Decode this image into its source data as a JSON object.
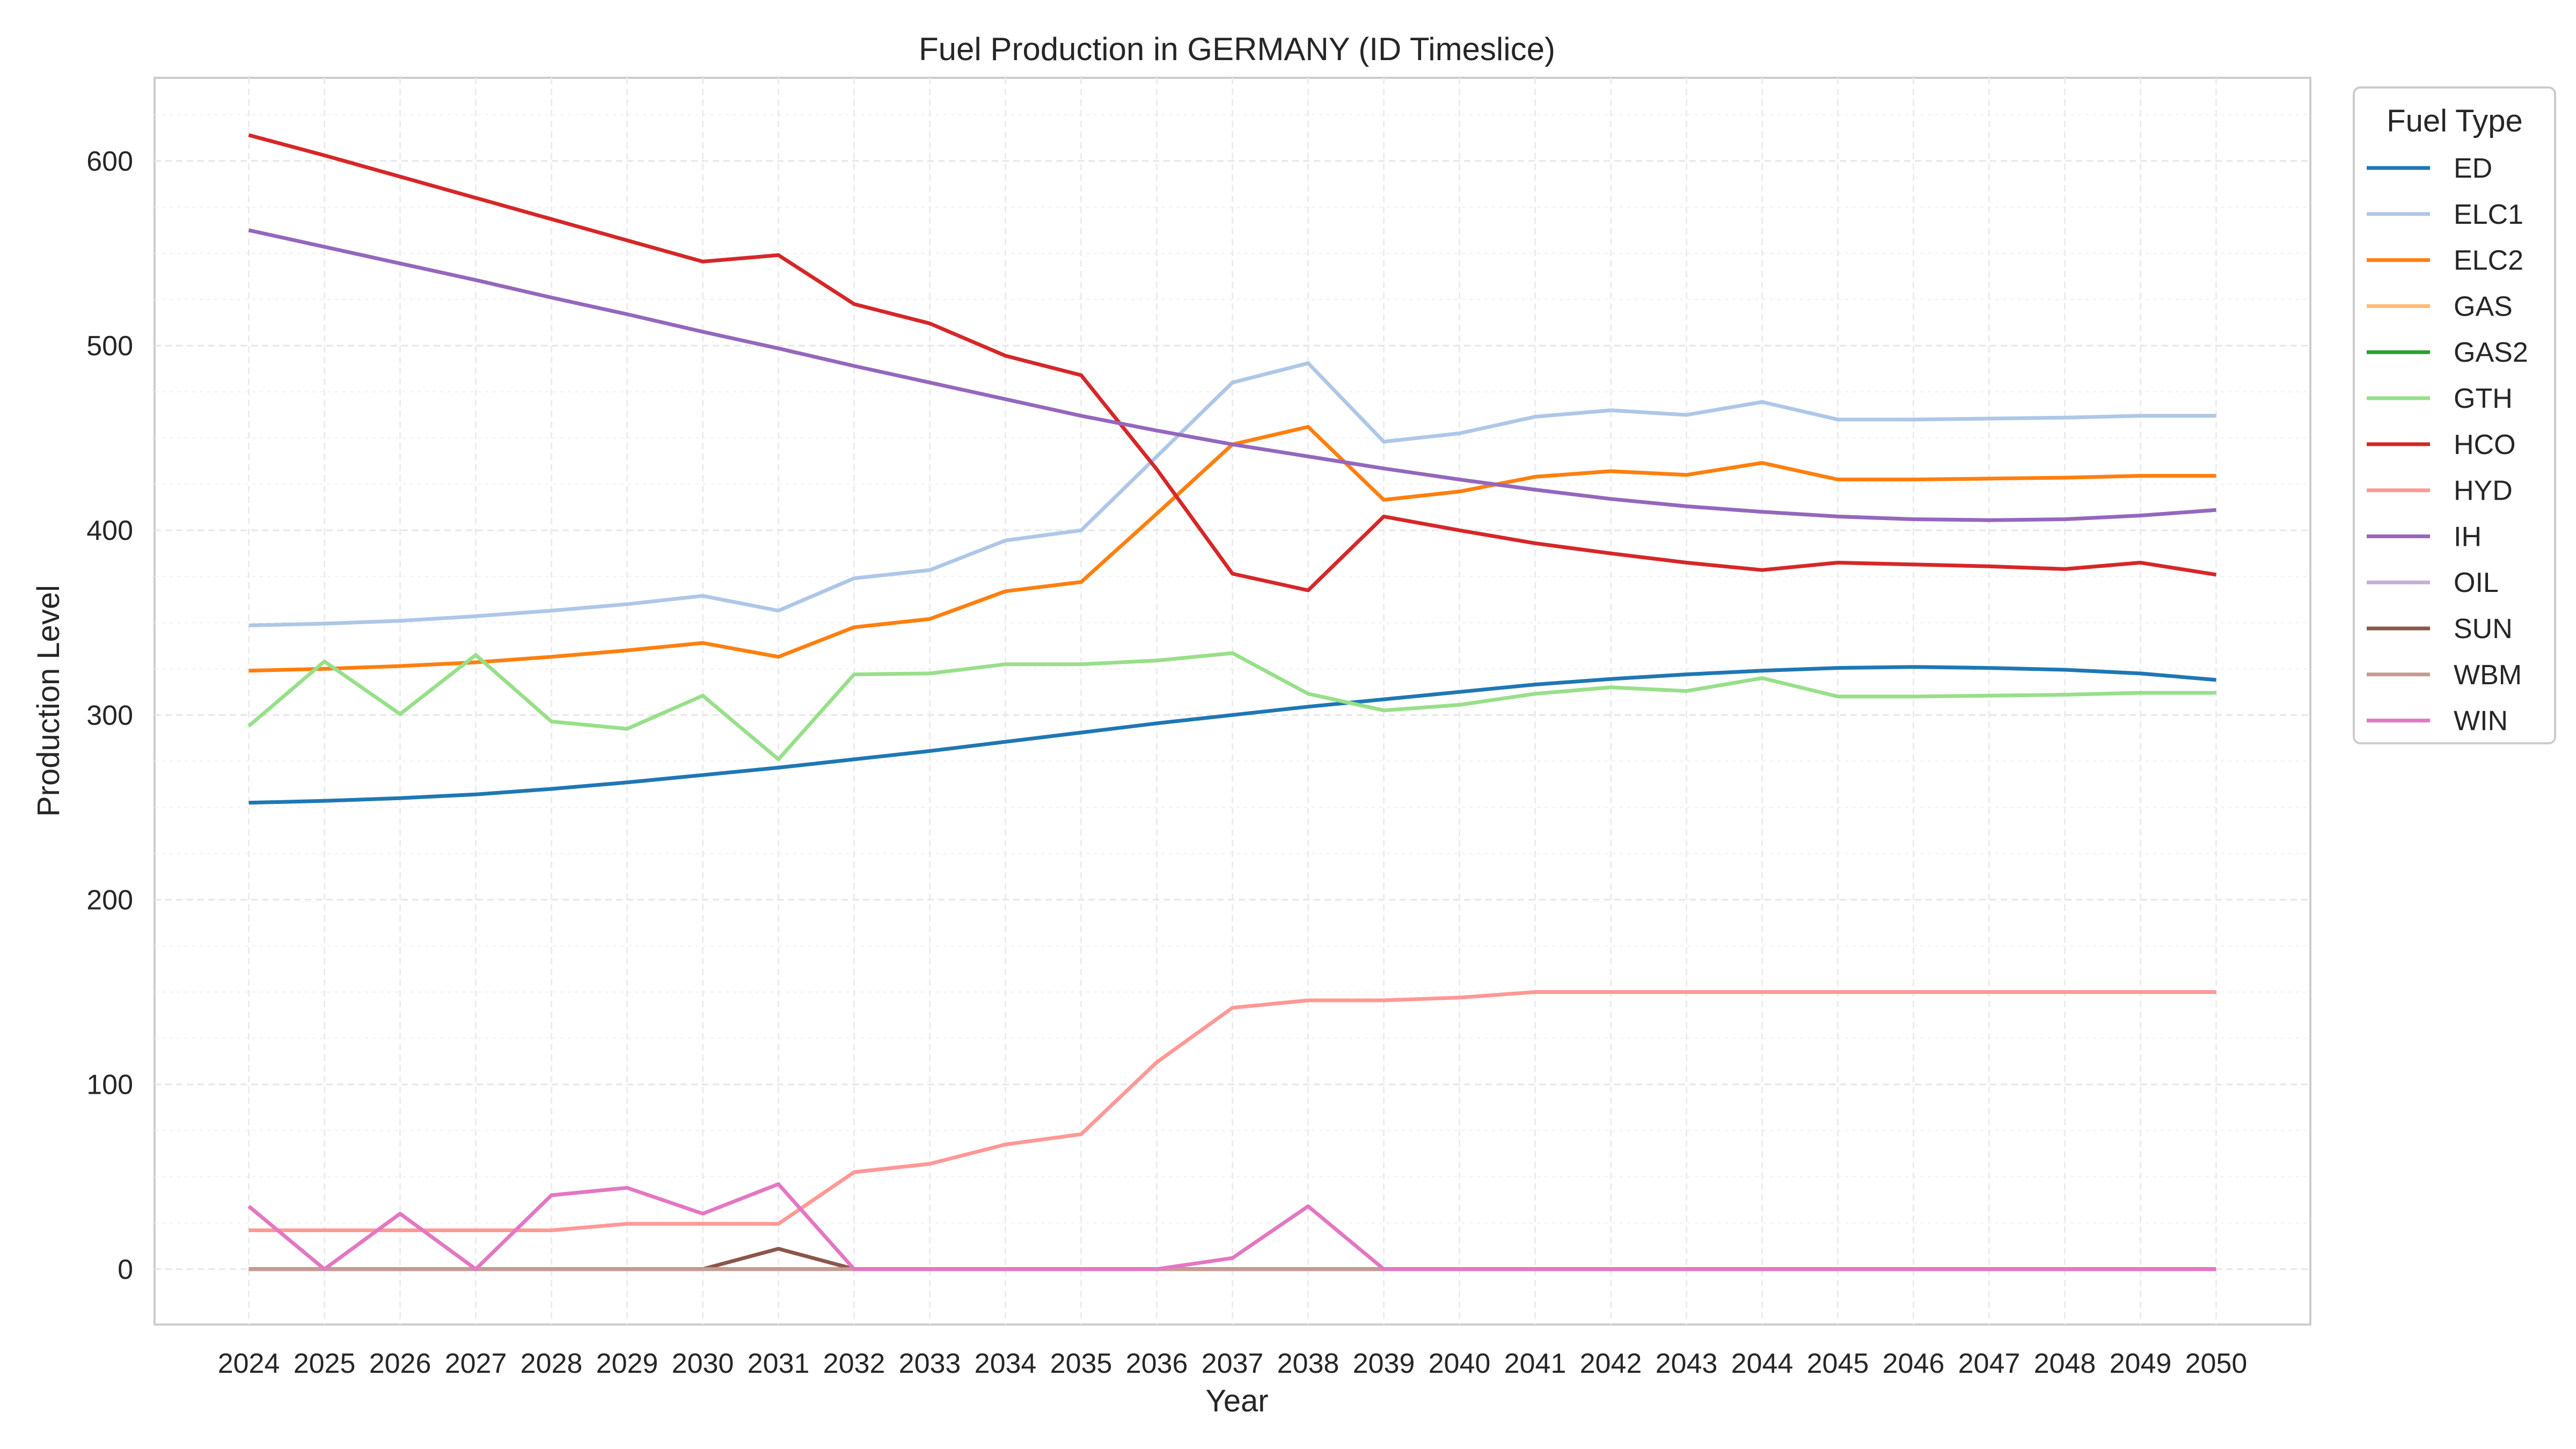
{
  "chart_data": {
    "type": "line",
    "title": "Fuel Production in GERMANY (ID Timeslice)",
    "xlabel": "Year",
    "ylabel": "Production Level",
    "ylim": [
      -30,
      645
    ],
    "yticks": [
      0,
      100,
      200,
      300,
      400,
      500,
      600
    ],
    "grid": true,
    "legend": {
      "title": "Fuel Type",
      "placement": "outside-top-right"
    },
    "x": [
      2024,
      2025,
      2026,
      2027,
      2028,
      2029,
      2030,
      2031,
      2032,
      2033,
      2034,
      2035,
      2036,
      2037,
      2038,
      2039,
      2040,
      2041,
      2042,
      2043,
      2044,
      2045,
      2046,
      2047,
      2048,
      2049,
      2050
    ],
    "series": [
      {
        "name": "ED",
        "color": "#1f77b4",
        "values": [
          252.5,
          253.5,
          255.0,
          257.0,
          260.0,
          263.5,
          267.5,
          271.5,
          276.0,
          280.5,
          285.5,
          290.5,
          295.5,
          300.0,
          304.5,
          308.5,
          312.5,
          316.5,
          319.5,
          322.0,
          324.0,
          325.5,
          326.0,
          325.5,
          324.5,
          322.5,
          319.0
        ]
      },
      {
        "name": "ELC1",
        "color": "#aec7e8",
        "values": [
          348.5,
          349.5,
          351.0,
          353.5,
          356.5,
          360.0,
          364.5,
          356.5,
          374.0,
          378.5,
          394.5,
          400.0,
          440.0,
          480.0,
          490.5,
          448.0,
          452.5,
          461.5,
          465.0,
          462.5,
          469.5,
          460.0,
          460.0,
          460.5,
          461.0,
          462.0,
          462.0
        ]
      },
      {
        "name": "ELC2",
        "color": "#ff7f0e",
        "values": [
          324.0,
          325.0,
          326.5,
          328.5,
          331.5,
          335.0,
          339.0,
          331.5,
          347.5,
          352.0,
          367.0,
          372.0,
          409.0,
          446.5,
          456.0,
          416.5,
          421.0,
          429.0,
          432.0,
          430.0,
          436.5,
          427.5,
          427.5,
          428.0,
          428.5,
          429.5,
          429.5
        ]
      },
      {
        "name": "GAS",
        "color": "#ffbb78",
        "values": [
          0,
          0,
          0,
          0,
          0,
          0,
          0,
          0,
          0,
          0,
          0,
          0,
          0,
          0,
          0,
          0,
          0,
          0,
          0,
          0,
          0,
          0,
          0,
          0,
          0,
          0,
          0
        ]
      },
      {
        "name": "GAS2",
        "color": "#2ca02c",
        "values": [
          0,
          0,
          0,
          0,
          0,
          0,
          0,
          0,
          0,
          0,
          0,
          0,
          0,
          0,
          0,
          0,
          0,
          0,
          0,
          0,
          0,
          0,
          0,
          0,
          0,
          0,
          0
        ]
      },
      {
        "name": "GTH",
        "color": "#98df8a",
        "values": [
          294.0,
          329.0,
          300.5,
          332.5,
          296.5,
          292.5,
          310.5,
          276.0,
          322.0,
          322.5,
          327.5,
          327.5,
          329.5,
          333.5,
          311.5,
          302.5,
          305.5,
          311.5,
          315.0,
          313.0,
          320.0,
          310.0,
          310.0,
          310.5,
          311.0,
          312.0,
          312.0
        ]
      },
      {
        "name": "HCO",
        "color": "#d62728",
        "values": [
          614.0,
          603.0,
          591.5,
          580.0,
          568.5,
          557.0,
          545.5,
          549.0,
          522.5,
          512.0,
          494.5,
          484.0,
          433.0,
          376.5,
          367.5,
          407.5,
          400.0,
          393.0,
          387.5,
          382.5,
          378.5,
          382.5,
          381.5,
          380.5,
          379.0,
          382.5,
          376.0
        ]
      },
      {
        "name": "HYD",
        "color": "#ff9896",
        "values": [
          21.0,
          21.0,
          21.0,
          21.0,
          21.0,
          24.5,
          24.5,
          24.5,
          52.5,
          57.0,
          67.5,
          73.0,
          112.0,
          141.5,
          145.5,
          145.5,
          147.0,
          150.0,
          150.0,
          150.0,
          150.0,
          150.0,
          150.0,
          150.0,
          150.0,
          150.0,
          150.0
        ]
      },
      {
        "name": "IH",
        "color": "#9467bd",
        "values": [
          562.5,
          553.5,
          544.5,
          535.5,
          526.0,
          517.0,
          507.5,
          498.5,
          489.0,
          480.0,
          471.0,
          462.0,
          454.0,
          446.5,
          440.0,
          433.5,
          427.5,
          422.0,
          417.0,
          413.0,
          410.0,
          407.5,
          406.0,
          405.5,
          406.0,
          408.0,
          411.0
        ]
      },
      {
        "name": "OIL",
        "color": "#c5b0d5",
        "values": [
          0,
          0,
          0,
          0,
          0,
          0,
          0,
          0,
          0,
          0,
          0,
          0,
          0,
          0,
          0,
          0,
          0,
          0,
          0,
          0,
          0,
          0,
          0,
          0,
          0,
          0,
          0
        ]
      },
      {
        "name": "SUN",
        "color": "#8c564b",
        "values": [
          0,
          0,
          0,
          0,
          0,
          0,
          0,
          11.0,
          0,
          0,
          0,
          0,
          0,
          0,
          0,
          0,
          0,
          0,
          0,
          0,
          0,
          0,
          0,
          0,
          0,
          0,
          0
        ]
      },
      {
        "name": "WBM",
        "color": "#c49c94",
        "values": [
          0,
          0,
          0,
          0,
          0,
          0,
          0,
          0,
          0,
          0,
          0,
          0,
          0,
          0,
          0,
          0,
          0,
          0,
          0,
          0,
          0,
          0,
          0,
          0,
          0,
          0,
          0
        ]
      },
      {
        "name": "WIN",
        "color": "#e377c2",
        "values": [
          34.0,
          0,
          30.0,
          0,
          40.0,
          44.0,
          30.0,
          46.0,
          0,
          0,
          0,
          0,
          0,
          6.0,
          34.0,
          0,
          0,
          0,
          0,
          0,
          0,
          0,
          0,
          0,
          0,
          0,
          0
        ]
      }
    ]
  }
}
